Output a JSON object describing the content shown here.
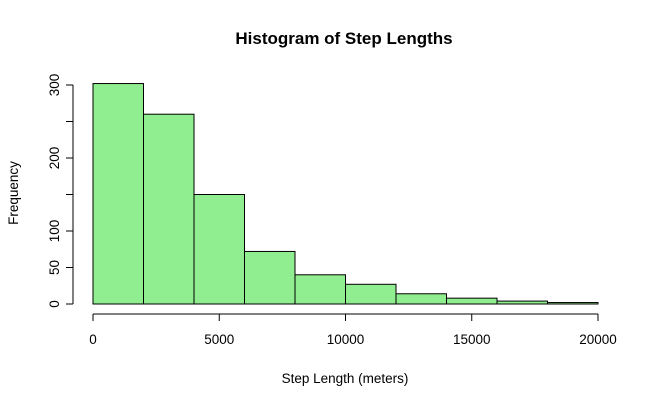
{
  "chart_data": {
    "type": "bar",
    "title": "Histogram of Step Lengths",
    "xlabel": "Step Length (meters)",
    "ylabel": "Frequency",
    "bins": [
      {
        "x0": 0,
        "x1": 2000,
        "value": 302
      },
      {
        "x0": 2000,
        "x1": 4000,
        "value": 260
      },
      {
        "x0": 4000,
        "x1": 6000,
        "value": 150
      },
      {
        "x0": 6000,
        "x1": 8000,
        "value": 72
      },
      {
        "x0": 8000,
        "x1": 10000,
        "value": 40
      },
      {
        "x0": 10000,
        "x1": 12000,
        "value": 27
      },
      {
        "x0": 12000,
        "x1": 14000,
        "value": 14
      },
      {
        "x0": 14000,
        "x1": 16000,
        "value": 8
      },
      {
        "x0": 16000,
        "x1": 18000,
        "value": 4
      },
      {
        "x0": 18000,
        "x1": 20000,
        "value": 2
      }
    ],
    "xticks": [
      0,
      5000,
      10000,
      15000,
      20000
    ],
    "yticks": [
      0,
      50,
      100,
      150,
      200,
      250,
      300
    ],
    "ytick_labels": [
      "0",
      "50",
      "100",
      "",
      "200",
      "",
      "300"
    ],
    "xlim": [
      0,
      20000
    ],
    "ylim": [
      0,
      300
    ],
    "bar_fill": "#90EE90",
    "grid": false
  }
}
